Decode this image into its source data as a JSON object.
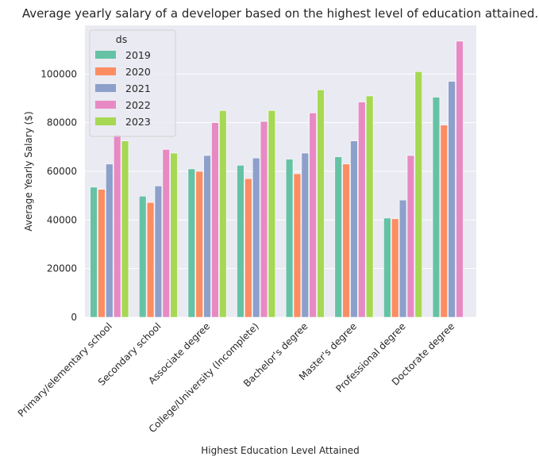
{
  "chart_data": {
    "type": "bar",
    "title": "Average yearly salary of a developer based on the highest level of education attained.",
    "xlabel": "Highest Education Level Attained",
    "ylabel": "Average Yearly Salary ($)",
    "ylim": [
      0,
      120000
    ],
    "yticks": [
      "0",
      "20000",
      "40000",
      "60000",
      "80000",
      "100000"
    ],
    "grid": true,
    "legend": {
      "title": "ds",
      "placement": "top-left"
    },
    "categories": [
      "Primary/elementary school",
      "Secondary school",
      "Associate degree",
      "College/University (Incomplete)",
      "Bachelor's degree",
      "Master's degree",
      "Professional degree",
      "Doctorate degree"
    ],
    "series": [
      {
        "name": "2019",
        "color": "#66c2a5",
        "values": [
          53500,
          49800,
          61000,
          62500,
          65000,
          66000,
          40800,
          90500
        ]
      },
      {
        "name": "2020",
        "color": "#fc8d62",
        "values": [
          52600,
          47200,
          60000,
          57000,
          59000,
          63000,
          40500,
          79000
        ]
      },
      {
        "name": "2021",
        "color": "#8da0cb",
        "values": [
          63000,
          54000,
          66500,
          65500,
          67500,
          72500,
          48200,
          97000
        ]
      },
      {
        "name": "2022",
        "color": "#e78ac3",
        "values": [
          75000,
          69000,
          80000,
          80500,
          84000,
          88500,
          66500,
          113500
        ]
      },
      {
        "name": "2023",
        "color": "#a6d854",
        "values": [
          72500,
          67500,
          85000,
          85000,
          93500,
          91000,
          101000,
          0
        ]
      }
    ]
  }
}
